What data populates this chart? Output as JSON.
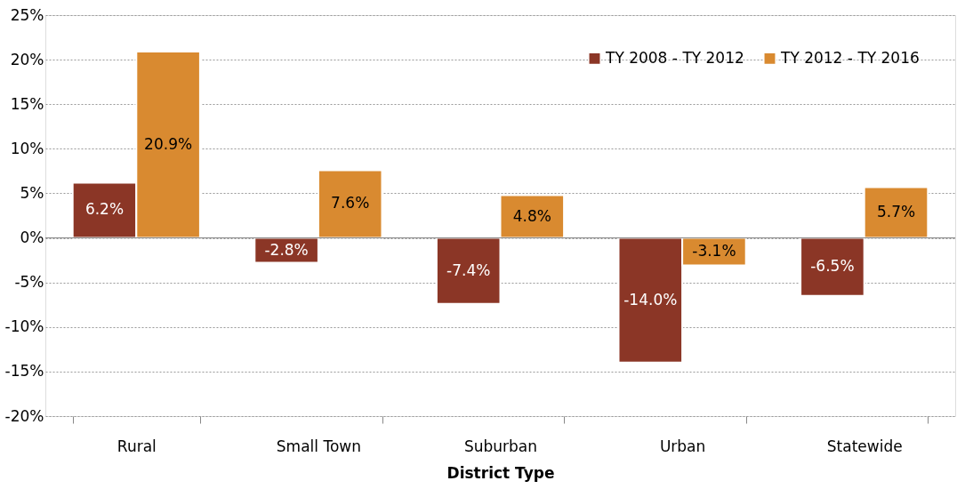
{
  "chart_data": {
    "type": "bar",
    "xlabel": "District Type",
    "categories": [
      "Rural",
      "Small Town",
      "Suburban",
      "Urban",
      "Statewide"
    ],
    "series": [
      {
        "name": "TY 2008 - TY 2012",
        "color": "#8b3626",
        "values": [
          6.2,
          -2.8,
          -7.4,
          -14.0,
          -6.5
        ],
        "value_labels": [
          "6.2%",
          "-2.8%",
          "-7.4%",
          "-14.0%",
          "-6.5%"
        ]
      },
      {
        "name": "TY 2012 - TY 2016",
        "color": "#d98a30",
        "values": [
          20.9,
          7.6,
          4.8,
          -3.1,
          5.7
        ],
        "value_labels": [
          "20.9%",
          "7.6%",
          "4.8%",
          "-3.1%",
          "5.7%"
        ]
      }
    ],
    "ylim": [
      -20,
      25
    ],
    "yticks": [
      {
        "value": -20,
        "label": "-20%"
      },
      {
        "value": -15,
        "label": "-15%"
      },
      {
        "value": -10,
        "label": "-10%"
      },
      {
        "value": -5,
        "label": "-5%"
      },
      {
        "value": 0,
        "label": "0%"
      },
      {
        "value": 5,
        "label": "5%"
      },
      {
        "value": 10,
        "label": "10%"
      },
      {
        "value": 15,
        "label": "15%"
      },
      {
        "value": 20,
        "label": "20%"
      },
      {
        "value": 25,
        "label": "25%"
      }
    ],
    "grid": "y",
    "legend": "top right"
  }
}
